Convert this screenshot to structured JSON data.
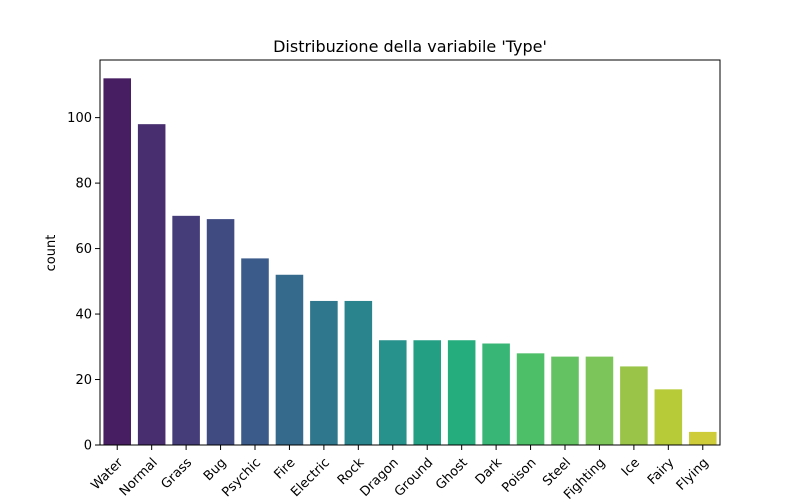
{
  "chart_data": {
    "type": "bar",
    "title": "Distribuzione della variabile 'Type'",
    "xlabel": "",
    "ylabel": "count",
    "categories": [
      "Water",
      "Normal",
      "Grass",
      "Bug",
      "Psychic",
      "Fire",
      "Electric",
      "Rock",
      "Dragon",
      "Ground",
      "Ghost",
      "Dark",
      "Poison",
      "Steel",
      "Fighting",
      "Ice",
      "Fairy",
      "Flying"
    ],
    "values": [
      112,
      98,
      70,
      69,
      57,
      52,
      44,
      44,
      32,
      32,
      32,
      31,
      28,
      27,
      27,
      24,
      17,
      4
    ],
    "colors": [
      "#471e61",
      "#482e6e",
      "#453d7a",
      "#404b82",
      "#3b5b8a",
      "#356a8c",
      "#2f778d",
      "#2a848d",
      "#27918c",
      "#23a084",
      "#25ad7e",
      "#38b675",
      "#4dbf68",
      "#64c262",
      "#7cc55a",
      "#99c447",
      "#b6cb37",
      "#cfcc3a"
    ],
    "yticks": [
      0,
      20,
      40,
      60,
      80,
      100
    ],
    "ylim": [
      0,
      117.6
    ],
    "grid": false,
    "legend": "none"
  }
}
